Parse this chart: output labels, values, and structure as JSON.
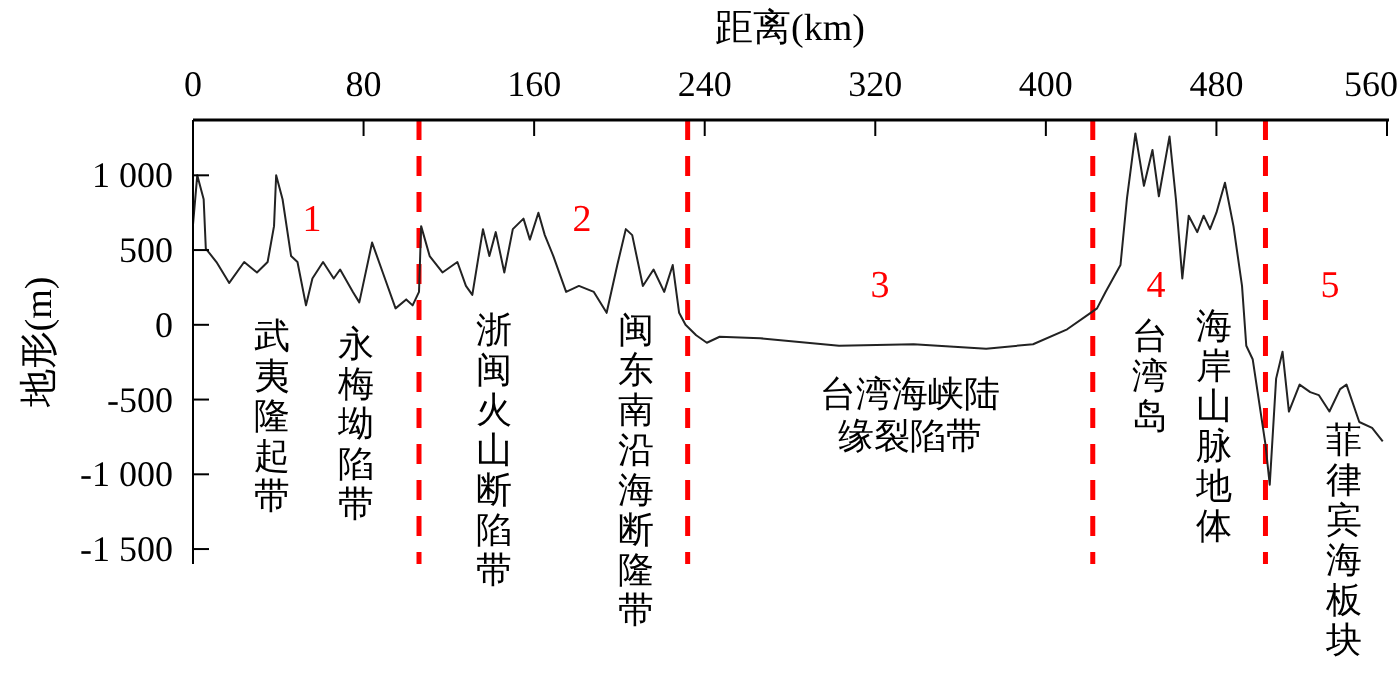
{
  "chart_data": {
    "type": "line",
    "xlabel": "距离(km)",
    "ylabel": "地形(m)",
    "xlim": [
      0,
      560
    ],
    "xticks": [
      0,
      80,
      160,
      240,
      320,
      400,
      480,
      560
    ],
    "ylim": [
      -1600,
      1370
    ],
    "yticks": [
      {
        "value": 1000,
        "label": "1 000"
      },
      500,
      0,
      -500,
      {
        "value": -1000,
        "label": "-1 000"
      },
      {
        "value": -1500,
        "label": "-1 500"
      }
    ],
    "grid": false,
    "series": [
      {
        "color": "#222222",
        "x": [
          0,
          2,
          5,
          6,
          11,
          17,
          24,
          30,
          35,
          38,
          39,
          42,
          46,
          49,
          53,
          56,
          61,
          66,
          69,
          75,
          78,
          84,
          89,
          95,
          100,
          103,
          106,
          107,
          111,
          117,
          124,
          128,
          131,
          136,
          139,
          142,
          146,
          150,
          155,
          158,
          162,
          165,
          169,
          175,
          181,
          188,
          194,
          199,
          203,
          206,
          211,
          216,
          221,
          225,
          228,
          231,
          236,
          241,
          247,
          266,
          303,
          338,
          372,
          394,
          410,
          421,
          424,
          428,
          435,
          438,
          442,
          446,
          450,
          453,
          458,
          461,
          464,
          467,
          471,
          474,
          477,
          480,
          484,
          488,
          492,
          494,
          497,
          503,
          505,
          508,
          511,
          514,
          519,
          524,
          528,
          533,
          538,
          541,
          547,
          553,
          558
        ],
        "values": [
          670,
          1000,
          840,
          510,
          420,
          280,
          420,
          350,
          420,
          660,
          1000,
          840,
          460,
          420,
          130,
          310,
          420,
          310,
          370,
          220,
          150,
          550,
          350,
          110,
          170,
          130,
          220,
          660,
          460,
          350,
          420,
          260,
          200,
          640,
          460,
          620,
          350,
          640,
          710,
          570,
          750,
          600,
          460,
          220,
          260,
          220,
          80,
          400,
          640,
          600,
          260,
          370,
          220,
          400,
          80,
          0,
          -70,
          -120,
          -80,
          -90,
          -140,
          -130,
          -160,
          -130,
          -30,
          80,
          110,
          220,
          400,
          840,
          1280,
          930,
          1170,
          860,
          1260,
          840,
          310,
          730,
          620,
          730,
          640,
          750,
          950,
          660,
          260,
          -140,
          -230,
          -800,
          -1070,
          -360,
          -180,
          -580,
          -400,
          -450,
          -470,
          -580,
          -430,
          -400,
          -650,
          -690,
          -780
        ]
      }
    ],
    "ref_lines": [
      {
        "axis": "x",
        "value": 106,
        "color": "#ff0000",
        "line_style": "dashed"
      },
      {
        "axis": "x",
        "value": 232,
        "color": "#ff0000",
        "line_style": "dashed"
      },
      {
        "axis": "x",
        "value": 422,
        "color": "#ff0000",
        "line_style": "dashed"
      },
      {
        "axis": "x",
        "value": 503,
        "color": "#ff0000",
        "line_style": "dashed"
      }
    ],
    "annotations": [
      "1",
      "2",
      "3",
      "4",
      "5",
      "武夷隆起带",
      "永梅坳陷带",
      "浙闽火山断陷带",
      "闽东南沿海断隆带",
      "台湾海峡陆",
      "缘裂陷带",
      "台湾岛",
      "海岸山脉地体",
      "菲律宾海板块"
    ]
  }
}
